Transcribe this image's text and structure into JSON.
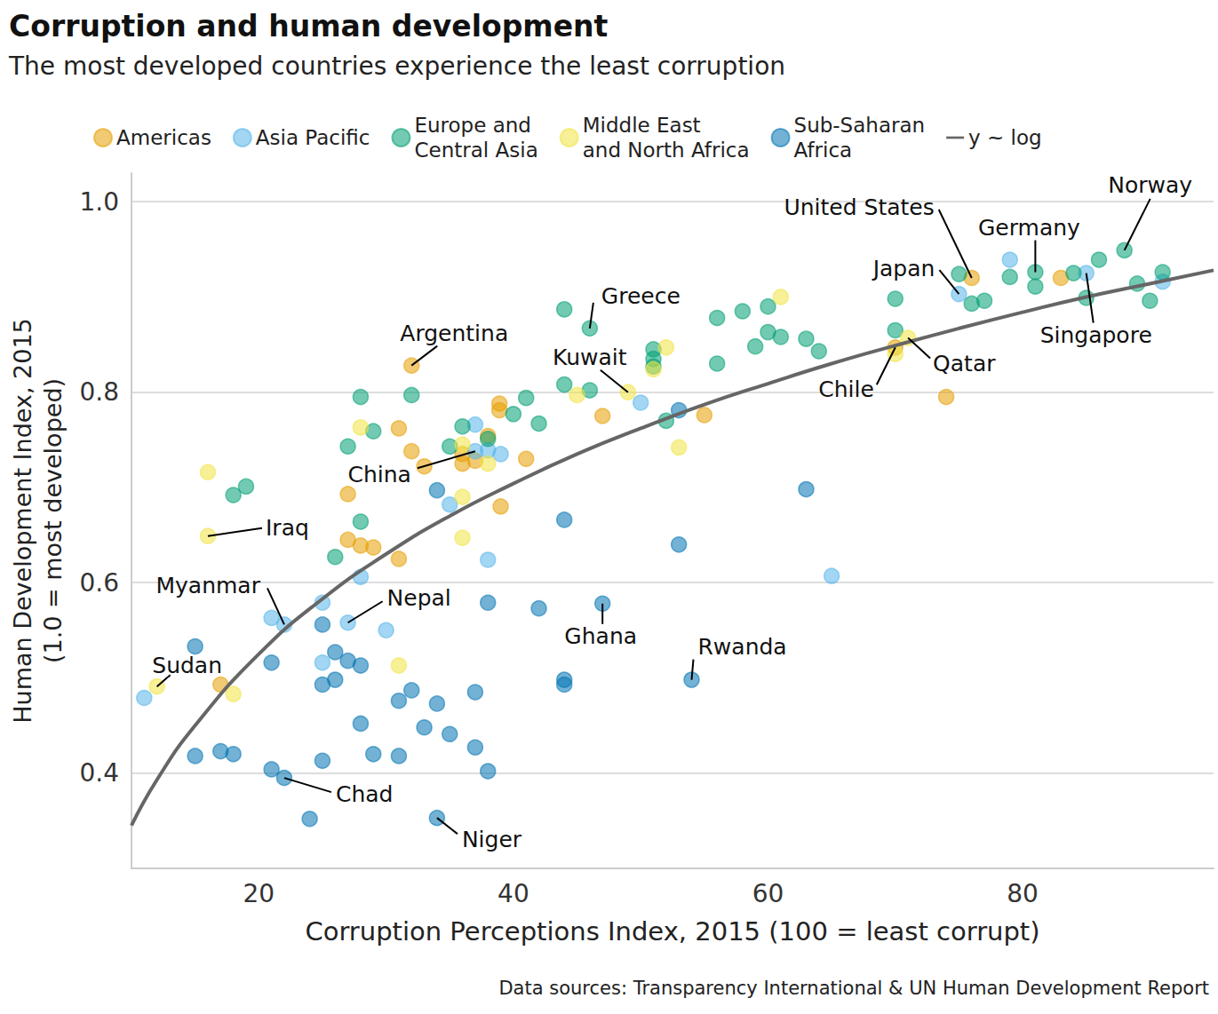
{
  "chart_data": {
    "type": "scatter",
    "title": "Corruption and human development",
    "subtitle": "The most developed countries experience the least corruption",
    "caption": "Data sources: Transparency International & UN Human Development Report",
    "x_label": "Corruption Perceptions Index, 2015 (100 = least corrupt)",
    "y_label": "Human Development Index, 2015\n(1.0 = most developed)",
    "xlim": [
      10,
      95
    ],
    "xticks": [
      20,
      40,
      60,
      80
    ],
    "ylim": [
      0.3,
      1.03
    ],
    "yticks": [
      0.4,
      0.6,
      0.8,
      {
        "value": 1,
        "label": "1.0"
      }
    ],
    "grid": "y",
    "legend": "top",
    "series": [
      {
        "name": "Americas",
        "color": "#E69F00",
        "marker": "circle",
        "x": [
          76,
          83,
          74,
          55,
          47,
          38.9,
          38.9,
          38,
          41,
          39,
          32,
          31,
          32,
          33,
          36,
          36,
          37,
          27,
          27,
          28,
          29,
          31,
          17,
          70
        ],
        "values": [
          0.92,
          0.92,
          0.795,
          0.776,
          0.775,
          0.788,
          0.781,
          0.754,
          0.73,
          0.68,
          0.828,
          0.762,
          0.738,
          0.722,
          0.735,
          0.725,
          0.728,
          0.693,
          0.645,
          0.639,
          0.637,
          0.625,
          0.493,
          0.847
        ]
      },
      {
        "name": "Asia Pacific",
        "color": "#56B4E9",
        "marker": "circle",
        "x": [
          79,
          75,
          85,
          91,
          50,
          37,
          38,
          39,
          37,
          35,
          38,
          65,
          28,
          21,
          22,
          27,
          30,
          25,
          25,
          11
        ],
        "values": [
          0.939,
          0.903,
          0.925,
          0.916,
          0.789,
          0.766,
          0.739,
          0.735,
          0.738,
          0.682,
          0.624,
          0.607,
          0.606,
          0.563,
          0.556,
          0.558,
          0.55,
          0.579,
          0.516,
          0.479
        ]
      },
      {
        "name": "Europe and\nCentral Asia",
        "color": "#009E73",
        "marker": "circle",
        "x": [
          88,
          81,
          81,
          75,
          76,
          77,
          79,
          84,
          86,
          85,
          89,
          90,
          91,
          70,
          70,
          63,
          64,
          60,
          61,
          60,
          59,
          58,
          56,
          56,
          52,
          51,
          51,
          51,
          46,
          44,
          44,
          46,
          41,
          40,
          42,
          38,
          36,
          35,
          32,
          28,
          29,
          27,
          28,
          26,
          18,
          19
        ],
        "values": [
          0.949,
          0.926,
          0.911,
          0.924,
          0.893,
          0.896,
          0.921,
          0.925,
          0.939,
          0.899,
          0.914,
          0.896,
          0.926,
          0.898,
          0.865,
          0.856,
          0.843,
          0.863,
          0.858,
          0.89,
          0.848,
          0.885,
          0.878,
          0.83,
          0.77,
          0.845,
          0.835,
          0.827,
          0.867,
          0.887,
          0.808,
          0.802,
          0.794,
          0.777,
          0.767,
          0.751,
          0.764,
          0.743,
          0.797,
          0.795,
          0.759,
          0.743,
          0.664,
          0.627,
          0.692,
          0.701
        ]
      },
      {
        "name": "Middle East\nand North Africa",
        "color": "#F0E442",
        "marker": "circle",
        "x": [
          61,
          52,
          51,
          49,
          45,
          53,
          70,
          71,
          36,
          38,
          28,
          36,
          36,
          16,
          16,
          31,
          12,
          18
        ],
        "values": [
          0.9,
          0.847,
          0.824,
          0.8,
          0.797,
          0.742,
          0.84,
          0.857,
          0.745,
          0.725,
          0.763,
          0.69,
          0.647,
          0.716,
          0.649,
          0.513,
          0.491,
          0.483
        ]
      },
      {
        "name": "Sub-Saharan\nAfrica",
        "color": "#0072B2",
        "marker": "circle",
        "x": [
          53,
          63,
          53,
          54,
          47,
          44,
          42,
          44,
          44,
          38,
          34,
          37,
          32,
          31,
          34,
          33,
          35,
          37,
          38,
          31,
          29,
          28,
          28,
          27,
          26,
          26,
          25,
          25,
          25,
          21,
          21,
          22,
          24,
          34,
          17,
          18,
          15,
          15
        ],
        "values": [
          0.781,
          0.698,
          0.64,
          0.498,
          0.578,
          0.666,
          0.573,
          0.498,
          0.493,
          0.579,
          0.697,
          0.485,
          0.487,
          0.476,
          0.473,
          0.448,
          0.441,
          0.427,
          0.402,
          0.418,
          0.42,
          0.452,
          0.513,
          0.518,
          0.527,
          0.498,
          0.493,
          0.556,
          0.413,
          0.516,
          0.404,
          0.395,
          0.352,
          0.353,
          0.423,
          0.42,
          0.418,
          0.533
        ]
      },
      {
        "name": "y ~ log",
        "type": "line",
        "color": "#666666",
        "line_style": "solid",
        "x": [
          10,
          12,
          15,
          20,
          25,
          30,
          35,
          40,
          45,
          50,
          55,
          60,
          65,
          70,
          75,
          80,
          85,
          90,
          95
        ],
        "values": [
          0.345,
          0.393,
          0.45,
          0.525,
          0.583,
          0.63,
          0.67,
          0.704,
          0.735,
          0.762,
          0.787,
          0.809,
          0.83,
          0.849,
          0.867,
          0.884,
          0.9,
          0.914,
          0.928
        ]
      }
    ],
    "annotations": [
      {
        "text": "Norway",
        "x": 88,
        "y": 0.949
      },
      {
        "text": "United States",
        "x": 76,
        "y": 0.92
      },
      {
        "text": "Germany",
        "x": 81,
        "y": 0.926
      },
      {
        "text": "Japan",
        "x": 75,
        "y": 0.903
      },
      {
        "text": "Singapore",
        "x": 85,
        "y": 0.925
      },
      {
        "text": "Greece",
        "x": 46,
        "y": 0.867
      },
      {
        "text": "Argentina",
        "x": 32,
        "y": 0.828
      },
      {
        "text": "Kuwait",
        "x": 49,
        "y": 0.8
      },
      {
        "text": "Qatar",
        "x": 71,
        "y": 0.857
      },
      {
        "text": "Chile",
        "x": 70,
        "y": 0.847
      },
      {
        "text": "China",
        "x": 37,
        "y": 0.738
      },
      {
        "text": "Iraq",
        "x": 16,
        "y": 0.649
      },
      {
        "text": "Myanmar",
        "x": 22,
        "y": 0.556
      },
      {
        "text": "Nepal",
        "x": 27,
        "y": 0.558
      },
      {
        "text": "Sudan",
        "x": 12,
        "y": 0.491
      },
      {
        "text": "Ghana",
        "x": 47,
        "y": 0.578
      },
      {
        "text": "Rwanda",
        "x": 54,
        "y": 0.498
      },
      {
        "text": "Chad",
        "x": 22,
        "y": 0.395
      },
      {
        "text": "Niger",
        "x": 34,
        "y": 0.353
      }
    ]
  }
}
